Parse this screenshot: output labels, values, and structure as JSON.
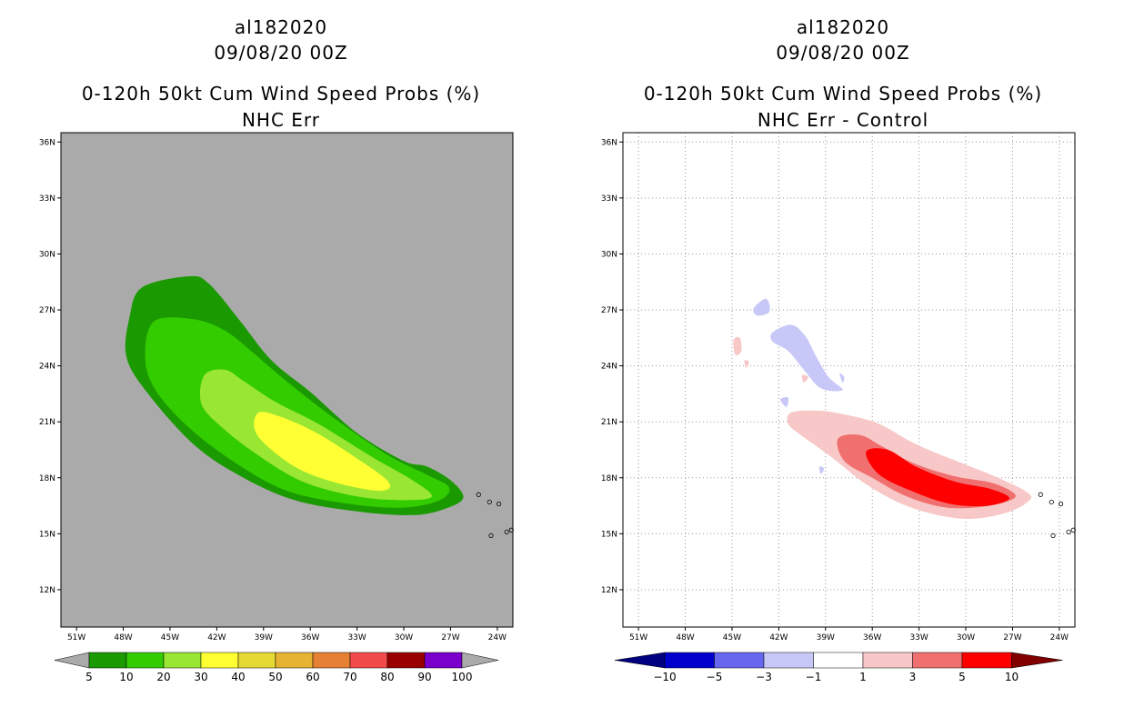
{
  "chart_data": [
    {
      "type": "contour-map",
      "storm_id": "al182020",
      "init_time": "09/08/20 00Z",
      "title": "0-120h 50kt Cum Wind Speed Probs (%)",
      "subtitle": "NHC Err",
      "background": "#aaaaaa",
      "lon_ticks": [
        "51W",
        "48W",
        "45W",
        "42W",
        "39W",
        "36W",
        "33W",
        "30W",
        "27W",
        "24W"
      ],
      "lat_ticks": [
        "36N",
        "33N",
        "30N",
        "27N",
        "24N",
        "21N",
        "18N",
        "15N",
        "12N"
      ],
      "xlim": [
        -52,
        -23
      ],
      "ylim": [
        10,
        36.5
      ],
      "colorbar": {
        "labels": [
          "5",
          "10",
          "20",
          "30",
          "40",
          "50",
          "60",
          "70",
          "80",
          "90",
          "100"
        ],
        "colors": [
          "#1a9900",
          "#33cc00",
          "#99e633",
          "#ffff33",
          "#e6d933",
          "#e6b333",
          "#e68033",
          "#f04a4a",
          "#990000",
          "#7a00cc"
        ],
        "end_color": "#aaaaaa"
      },
      "contours": [
        {
          "level": 5,
          "color": "#1a9900",
          "points": [
            [
              -46.8,
              28.2
            ],
            [
              -43.8,
              28.8
            ],
            [
              -42.5,
              28.4
            ],
            [
              -40.5,
              26.4
            ],
            [
              -38.5,
              24.3
            ],
            [
              -36,
              22.6
            ],
            [
              -33,
              20.4
            ],
            [
              -30,
              18.9
            ],
            [
              -28.5,
              18.6
            ],
            [
              -26.9,
              17.8
            ],
            [
              -26.2,
              16.9
            ],
            [
              -27.5,
              16.3
            ],
            [
              -29.5,
              16
            ],
            [
              -33,
              16.2
            ],
            [
              -37,
              16.8
            ],
            [
              -40.5,
              18.1
            ],
            [
              -43.5,
              19.8
            ],
            [
              -46.5,
              22.6
            ],
            [
              -47.8,
              24.5
            ],
            [
              -47.6,
              26.6
            ]
          ]
        },
        {
          "level": 10,
          "color": "#33cc00",
          "points": [
            [
              -46,
              26.4
            ],
            [
              -43.5,
              26.5
            ],
            [
              -41.5,
              25.9
            ],
            [
              -39.8,
              24.8
            ],
            [
              -37.7,
              23.3
            ],
            [
              -34.8,
              21.4
            ],
            [
              -31.2,
              19.3
            ],
            [
              -28.6,
              18.2
            ],
            [
              -27.1,
              17.5
            ],
            [
              -27.7,
              16.8
            ],
            [
              -30,
              16.4
            ],
            [
              -33.5,
              16.6
            ],
            [
              -37.5,
              17.3
            ],
            [
              -40.8,
              18.8
            ],
            [
              -43.8,
              20.7
            ],
            [
              -46,
              22.8
            ],
            [
              -46.6,
              24.6
            ]
          ]
        },
        {
          "level": 20,
          "color": "#99e633",
          "points": [
            [
              -42.8,
              23.5
            ],
            [
              -41.5,
              23.8
            ],
            [
              -40.3,
              23.2
            ],
            [
              -38.3,
              22.1
            ],
            [
              -35.5,
              20.9
            ],
            [
              -32,
              19.1
            ],
            [
              -29.5,
              17.9
            ],
            [
              -28.2,
              17
            ],
            [
              -30,
              16.8
            ],
            [
              -33,
              17
            ],
            [
              -36.5,
              17.8
            ],
            [
              -39.5,
              19.3
            ],
            [
              -41.8,
              20.8
            ],
            [
              -43,
              22
            ]
          ]
        },
        {
          "level": 30,
          "color": "#ffff33",
          "points": [
            [
              -39.3,
              21.5
            ],
            [
              -38,
              21.3
            ],
            [
              -35.8,
              20.5
            ],
            [
              -33.3,
              19.2
            ],
            [
              -31,
              17.8
            ],
            [
              -31.5,
              17.3
            ],
            [
              -34.2,
              17.7
            ],
            [
              -36.8,
              18.5
            ],
            [
              -38.9,
              19.8
            ],
            [
              -39.6,
              20.7
            ]
          ]
        }
      ],
      "islands": "Cape Verde"
    },
    {
      "type": "contour-map",
      "storm_id": "al182020",
      "init_time": "09/08/20 00Z",
      "title": "0-120h 50kt Cum Wind Speed Probs (%)",
      "subtitle": "NHC Err - Control",
      "background": "#ffffff",
      "grid": true,
      "lon_ticks": [
        "51W",
        "48W",
        "45W",
        "42W",
        "39W",
        "36W",
        "33W",
        "30W",
        "27W",
        "24W"
      ],
      "lat_ticks": [
        "36N",
        "33N",
        "30N",
        "27N",
        "24N",
        "21N",
        "18N",
        "15N",
        "12N"
      ],
      "xlim": [
        -52,
        -23
      ],
      "ylim": [
        10,
        36.5
      ],
      "colorbar": {
        "labels": [
          "-10",
          "-5",
          "-3",
          "-1",
          "1",
          "3",
          "5",
          "10"
        ],
        "colors": [
          "#0000cc",
          "#6666ee",
          "#c8c8f8",
          "#ffffff",
          "#f8c8c8",
          "#f07070",
          "#ff0000"
        ],
        "left_end_color": "#000080",
        "right_end_color": "#800000"
      },
      "contours": [
        {
          "level": -1,
          "color": "#c8c8f8",
          "points": [
            [
              -42.4,
              25.8
            ],
            [
              -41.2,
              26.2
            ],
            [
              -40.3,
              25.6
            ],
            [
              -39.6,
              24.5
            ],
            [
              -38.8,
              23.4
            ],
            [
              -37.9,
              22.7
            ],
            [
              -39.3,
              22.8
            ],
            [
              -40.4,
              23.8
            ],
            [
              -41.4,
              24.8
            ],
            [
              -42.4,
              25.3
            ]
          ]
        },
        {
          "level": -1,
          "color": "#c8c8f8",
          "points": [
            [
              -43.6,
              27.1
            ],
            [
              -42.8,
              27.6
            ],
            [
              -42.6,
              26.9
            ],
            [
              -43.4,
              26.7
            ]
          ]
        },
        {
          "level": -1,
          "color": "#c8c8f8",
          "points": [
            [
              -41.9,
              22.2
            ],
            [
              -41.4,
              22.3
            ],
            [
              -41.5,
              21.8
            ]
          ]
        },
        {
          "level": -1,
          "color": "#c8c8f8",
          "points": [
            [
              -38.1,
              23.6
            ],
            [
              -37.8,
              23.4
            ],
            [
              -37.9,
              23.1
            ]
          ]
        },
        {
          "level": -1,
          "color": "#c8c8f8",
          "points": [
            [
              -39.4,
              18.6
            ],
            [
              -39.1,
              18.5
            ],
            [
              -39.3,
              18.2
            ]
          ]
        },
        {
          "level": 1,
          "color": "#f8c8c8",
          "points": [
            [
              -41.2,
              21.5
            ],
            [
              -39.5,
              21.6
            ],
            [
              -37.8,
              21.4
            ],
            [
              -35.6,
              20.9
            ],
            [
              -33.2,
              19.8
            ],
            [
              -30.6,
              18.9
            ],
            [
              -28.2,
              18.1
            ],
            [
              -26.2,
              17.3
            ],
            [
              -25.9,
              16.8
            ],
            [
              -27.5,
              16.1
            ],
            [
              -30.2,
              15.8
            ],
            [
              -33.5,
              16.4
            ],
            [
              -36.3,
              17.6
            ],
            [
              -38.6,
              19.1
            ],
            [
              -40.6,
              20.3
            ],
            [
              -41.4,
              20.9
            ]
          ]
        },
        {
          "level": 1,
          "color": "#f8c8c8",
          "points": [
            [
              -44.9,
              25.4
            ],
            [
              -44.5,
              25.5
            ],
            [
              -44.4,
              24.8
            ],
            [
              -44.8,
              24.6
            ]
          ]
        },
        {
          "level": 1,
          "color": "#f8c8c8",
          "points": [
            [
              -44.2,
              24.3
            ],
            [
              -43.9,
              24.2
            ],
            [
              -44.1,
              23.9
            ]
          ]
        },
        {
          "level": 1,
          "color": "#f8c8c8",
          "points": [
            [
              -40.5,
              23.5
            ],
            [
              -40.1,
              23.4
            ],
            [
              -40.4,
              23.1
            ]
          ]
        },
        {
          "level": 3,
          "color": "#f07070",
          "points": [
            [
              -38.2,
              20.1
            ],
            [
              -36.8,
              20.3
            ],
            [
              -35.4,
              19.7
            ],
            [
              -33.4,
              18.8
            ],
            [
              -30.8,
              18.1
            ],
            [
              -28.2,
              17.7
            ],
            [
              -26.8,
              17
            ],
            [
              -28.5,
              16.5
            ],
            [
              -31.2,
              16.4
            ],
            [
              -33.8,
              17
            ],
            [
              -36,
              18
            ],
            [
              -37.8,
              18.9
            ]
          ]
        },
        {
          "level": 5,
          "color": "#ff0000",
          "points": [
            [
              -36.4,
              19.4
            ],
            [
              -35,
              19.5
            ],
            [
              -33.2,
              18.6
            ],
            [
              -30.7,
              17.8
            ],
            [
              -28.4,
              17.4
            ],
            [
              -27.2,
              16.9
            ],
            [
              -28.6,
              16.5
            ],
            [
              -31,
              16.6
            ],
            [
              -33.5,
              17.3
            ],
            [
              -35.6,
              18.2
            ]
          ]
        }
      ],
      "islands": "Cape Verde"
    }
  ]
}
